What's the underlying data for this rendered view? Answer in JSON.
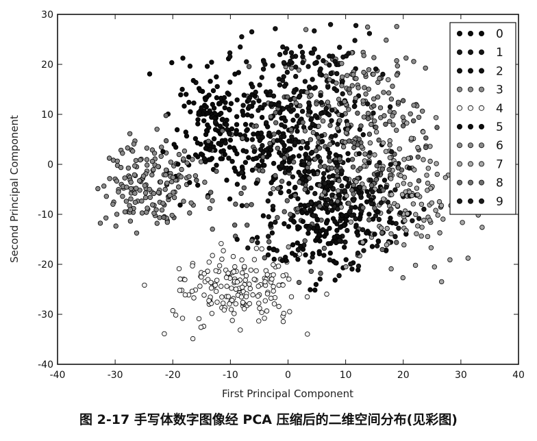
{
  "caption": "图 2-17   手写体数字图像经 PCA 压缩后的二维空间分布(见彩图)",
  "chart_data": {
    "type": "scatter",
    "title": "",
    "xlabel": "First Principal Component",
    "ylabel": "Second Principal Component",
    "xlim": [
      -40,
      40
    ],
    "ylim": [
      -40,
      30
    ],
    "xticks": [
      "-40",
      "-30",
      "-20",
      "-10",
      "0",
      "10",
      "20",
      "30",
      "40"
    ],
    "yticks": [
      "30",
      "20",
      "10",
      "0",
      "-10",
      "-20",
      "-30",
      "-40"
    ],
    "legend_position": "upper-right",
    "series": [
      {
        "name": "0",
        "color": "#0b0b0b",
        "cx": -13,
        "cy": 8,
        "sx": 4.5,
        "sy": 5.5,
        "n": 170
      },
      {
        "name": "1",
        "color": "#151515",
        "cx": 2,
        "cy": 14,
        "sx": 6,
        "sy": 6,
        "n": 190
      },
      {
        "name": "2",
        "color": "#101010",
        "cx": 0,
        "cy": 2,
        "sx": 6,
        "sy": 5,
        "n": 170
      },
      {
        "name": "3",
        "color": "#8c8c8c",
        "cx": 12,
        "cy": 12,
        "sx": 6,
        "sy": 6,
        "n": 150
      },
      {
        "name": "4",
        "color": "#f2f2f2",
        "cx": -9,
        "cy": -25,
        "sx": 5.5,
        "sy": 3.5,
        "n": 180
      },
      {
        "name": "5",
        "color": "#0d0d0d",
        "cx": 7,
        "cy": -12,
        "sx": 6,
        "sy": 5,
        "n": 170
      },
      {
        "name": "6",
        "color": "#8a8a8a",
        "cx": -24,
        "cy": -4,
        "sx": 4,
        "sy": 4.5,
        "n": 170
      },
      {
        "name": "7",
        "color": "#a8a8a8",
        "cx": 20,
        "cy": -6,
        "sx": 6,
        "sy": 7,
        "n": 170
      },
      {
        "name": "8",
        "color": "#6e6e6e",
        "cx": 5,
        "cy": 0,
        "sx": 10,
        "sy": 9,
        "n": 200
      },
      {
        "name": "9",
        "color": "#1a1a1a",
        "cx": 10,
        "cy": -8,
        "sx": 6,
        "sy": 5,
        "n": 160
      }
    ]
  }
}
